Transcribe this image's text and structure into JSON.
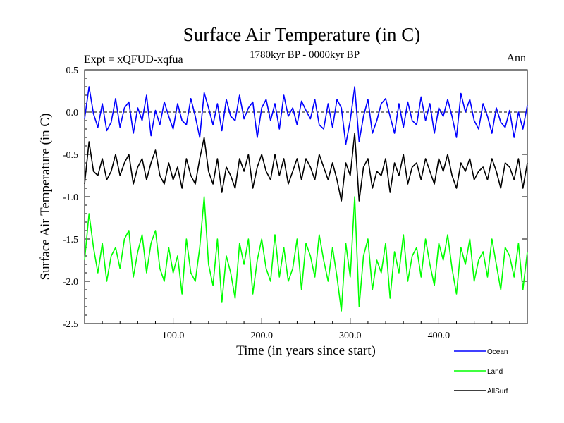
{
  "chart_data": {
    "type": "line",
    "title": "Surface Air Temperature (in C)",
    "subtitle": "1780kyr BP - 0000kyr BP",
    "annotation_left": "Expt = xQFUD-xqfua",
    "annotation_right": "Ann",
    "xlabel": "Time (in years since start)",
    "ylabel": "Surface Air Temperature (in C)",
    "xlim": [
      0,
      500
    ],
    "ylim": [
      -2.5,
      0.5
    ],
    "xticks": [
      100,
      200,
      300,
      400
    ],
    "xtick_labels": [
      "100.0",
      "200.0",
      "300.0",
      "400.0"
    ],
    "yticks": [
      0.5,
      0.0,
      -0.5,
      -1.0,
      -1.5,
      -2.0,
      -2.5
    ],
    "ytick_labels": [
      "0.5",
      "0.0",
      "-0.5",
      "-1.0",
      "-1.5",
      "-2.0",
      "-2.5"
    ],
    "reference_line_y": 0.0,
    "legend_position": "bottom-right outside",
    "series": [
      {
        "name": "Ocean",
        "color": "#0000ff",
        "x": [
          0,
          5,
          10,
          15,
          20,
          25,
          30,
          35,
          40,
          45,
          50,
          55,
          60,
          65,
          70,
          75,
          80,
          85,
          90,
          95,
          100,
          105,
          110,
          115,
          120,
          125,
          130,
          135,
          140,
          145,
          150,
          155,
          160,
          165,
          170,
          175,
          180,
          185,
          190,
          195,
          200,
          205,
          210,
          215,
          220,
          225,
          230,
          235,
          240,
          245,
          250,
          255,
          260,
          265,
          270,
          275,
          280,
          285,
          290,
          295,
          300,
          305,
          310,
          315,
          320,
          325,
          330,
          335,
          340,
          345,
          350,
          355,
          360,
          365,
          370,
          375,
          380,
          385,
          390,
          395,
          400,
          405,
          410,
          415,
          420,
          425,
          430,
          435,
          440,
          445,
          450,
          455,
          460,
          465,
          470,
          475,
          480,
          485,
          490,
          495,
          500
        ],
        "values": [
          -0.08,
          0.3,
          -0.02,
          -0.18,
          0.1,
          -0.22,
          -0.12,
          0.16,
          -0.18,
          0.05,
          0.12,
          -0.25,
          0.05,
          -0.1,
          0.2,
          -0.28,
          0.02,
          -0.15,
          0.12,
          -0.05,
          -0.2,
          0.1,
          -0.1,
          -0.15,
          0.16,
          -0.05,
          -0.3,
          0.23,
          0.05,
          -0.15,
          0.1,
          -0.22,
          0.15,
          -0.05,
          -0.1,
          0.2,
          -0.08,
          0.05,
          0.12,
          -0.3,
          0.05,
          0.15,
          -0.1,
          0.1,
          -0.2,
          0.2,
          -0.05,
          0.05,
          -0.15,
          0.13,
          0.02,
          -0.08,
          0.15,
          -0.15,
          -0.2,
          0.1,
          -0.18,
          0.15,
          0.05,
          -0.38,
          -0.1,
          0.3,
          -0.35,
          -0.05,
          0.15,
          -0.25,
          -0.1,
          0.1,
          0.16,
          -0.05,
          -0.25,
          0.1,
          -0.18,
          0.12,
          -0.1,
          -0.15,
          0.18,
          -0.1,
          0.1,
          -0.25,
          0.05,
          -0.05,
          0.15,
          -0.05,
          -0.3,
          0.22,
          0.0,
          0.15,
          -0.1,
          -0.2,
          0.1,
          -0.05,
          -0.25,
          0.05,
          -0.12,
          -0.18,
          0.02,
          -0.3,
          0.0,
          -0.2,
          0.08
        ]
      },
      {
        "name": "Land",
        "color": "#00ff00",
        "x": [
          0,
          5,
          10,
          15,
          20,
          25,
          30,
          35,
          40,
          45,
          50,
          55,
          60,
          65,
          70,
          75,
          80,
          85,
          90,
          95,
          100,
          105,
          110,
          115,
          120,
          125,
          130,
          135,
          140,
          145,
          150,
          155,
          160,
          165,
          170,
          175,
          180,
          185,
          190,
          195,
          200,
          205,
          210,
          215,
          220,
          225,
          230,
          235,
          240,
          245,
          250,
          255,
          260,
          265,
          270,
          275,
          280,
          285,
          290,
          295,
          300,
          305,
          310,
          315,
          320,
          325,
          330,
          335,
          340,
          345,
          350,
          355,
          360,
          365,
          370,
          375,
          380,
          385,
          390,
          395,
          400,
          405,
          410,
          415,
          420,
          425,
          430,
          435,
          440,
          445,
          450,
          455,
          460,
          465,
          470,
          475,
          480,
          485,
          490,
          495,
          500
        ],
        "values": [
          -1.75,
          -1.2,
          -1.6,
          -1.9,
          -1.55,
          -2.0,
          -1.7,
          -1.6,
          -1.85,
          -1.5,
          -1.4,
          -1.95,
          -1.65,
          -1.45,
          -1.9,
          -1.55,
          -1.4,
          -1.85,
          -2.0,
          -1.6,
          -1.9,
          -1.7,
          -2.15,
          -1.5,
          -1.9,
          -2.0,
          -1.6,
          -1.0,
          -1.8,
          -2.05,
          -1.5,
          -2.25,
          -1.7,
          -1.9,
          -2.2,
          -1.55,
          -1.8,
          -1.5,
          -2.15,
          -1.75,
          -1.5,
          -1.85,
          -2.0,
          -1.45,
          -1.95,
          -1.6,
          -2.0,
          -1.85,
          -1.5,
          -2.1,
          -1.55,
          -1.7,
          -1.95,
          -1.45,
          -1.75,
          -2.0,
          -1.6,
          -1.95,
          -2.35,
          -1.55,
          -1.95,
          -1.0,
          -2.3,
          -1.7,
          -1.5,
          -2.1,
          -1.75,
          -1.9,
          -1.55,
          -2.2,
          -1.65,
          -1.9,
          -1.45,
          -2.0,
          -1.7,
          -1.6,
          -1.95,
          -1.5,
          -1.8,
          -2.05,
          -1.55,
          -1.75,
          -1.45,
          -1.85,
          -2.15,
          -1.6,
          -1.8,
          -1.5,
          -2.0,
          -1.75,
          -1.65,
          -1.95,
          -1.5,
          -1.8,
          -2.1,
          -1.6,
          -1.7,
          -1.95,
          -1.55,
          -2.1,
          -1.65
        ]
      },
      {
        "name": "AllSurf",
        "color": "#000000",
        "x": [
          0,
          5,
          10,
          15,
          20,
          25,
          30,
          35,
          40,
          45,
          50,
          55,
          60,
          65,
          70,
          75,
          80,
          85,
          90,
          95,
          100,
          105,
          110,
          115,
          120,
          125,
          130,
          135,
          140,
          145,
          150,
          155,
          160,
          165,
          170,
          175,
          180,
          185,
          190,
          195,
          200,
          205,
          210,
          215,
          220,
          225,
          230,
          235,
          240,
          245,
          250,
          255,
          260,
          265,
          270,
          275,
          280,
          285,
          290,
          295,
          300,
          305,
          310,
          315,
          320,
          325,
          330,
          335,
          340,
          345,
          350,
          355,
          360,
          365,
          370,
          375,
          380,
          385,
          390,
          395,
          400,
          405,
          410,
          415,
          420,
          425,
          430,
          435,
          440,
          445,
          450,
          455,
          460,
          465,
          470,
          475,
          480,
          485,
          490,
          495,
          500
        ],
        "values": [
          -0.85,
          -0.35,
          -0.7,
          -0.75,
          -0.55,
          -0.8,
          -0.7,
          -0.5,
          -0.75,
          -0.6,
          -0.5,
          -0.85,
          -0.65,
          -0.55,
          -0.8,
          -0.6,
          -0.45,
          -0.75,
          -0.85,
          -0.6,
          -0.8,
          -0.65,
          -0.9,
          -0.55,
          -0.75,
          -0.85,
          -0.55,
          -0.3,
          -0.7,
          -0.85,
          -0.55,
          -0.95,
          -0.65,
          -0.75,
          -0.9,
          -0.55,
          -0.7,
          -0.5,
          -0.9,
          -0.65,
          -0.5,
          -0.7,
          -0.8,
          -0.5,
          -0.75,
          -0.55,
          -0.85,
          -0.7,
          -0.55,
          -0.8,
          -0.55,
          -0.65,
          -0.8,
          -0.5,
          -0.65,
          -0.8,
          -0.6,
          -0.8,
          -1.05,
          -0.6,
          -0.75,
          -0.25,
          -1.05,
          -0.65,
          -0.55,
          -0.9,
          -0.7,
          -0.75,
          -0.55,
          -0.95,
          -0.6,
          -0.75,
          -0.5,
          -0.85,
          -0.65,
          -0.6,
          -0.8,
          -0.55,
          -0.7,
          -0.85,
          -0.55,
          -0.7,
          -0.5,
          -0.75,
          -0.9,
          -0.6,
          -0.7,
          -0.55,
          -0.8,
          -0.7,
          -0.65,
          -0.8,
          -0.55,
          -0.7,
          -0.9,
          -0.6,
          -0.65,
          -0.8,
          -0.55,
          -0.9,
          -0.6
        ]
      }
    ]
  }
}
